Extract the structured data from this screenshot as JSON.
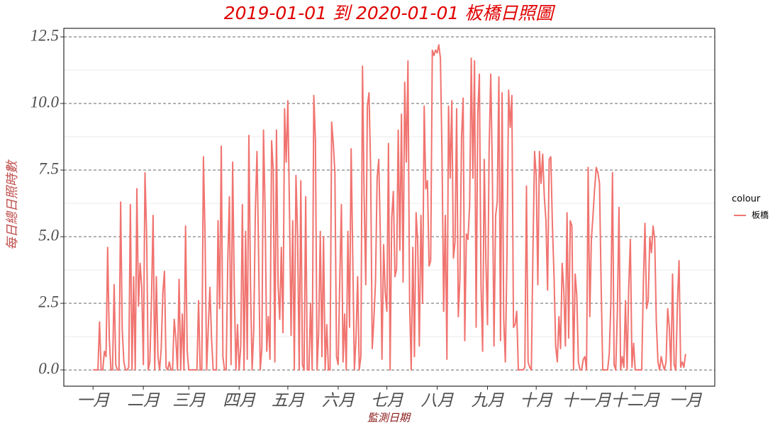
{
  "chart_data": {
    "type": "line",
    "title": "2019-01-01 到 2020-01-01 板橋日照圖",
    "x_label": "監測日期",
    "y_label": "每日總日照時數",
    "legend_title": "colour",
    "legend_position": "right",
    "grid": true,
    "xlim": [
      -18,
      383
    ],
    "xticks": [
      {
        "value": 0,
        "label": "一月"
      },
      {
        "value": 31,
        "label": "二月"
      },
      {
        "value": 59,
        "label": "三月"
      },
      {
        "value": 90,
        "label": "四月"
      },
      {
        "value": 120,
        "label": "五月"
      },
      {
        "value": 151,
        "label": "六月"
      },
      {
        "value": 181,
        "label": "七月"
      },
      {
        "value": 212,
        "label": "八月"
      },
      {
        "value": 243,
        "label": "九月"
      },
      {
        "value": 273,
        "label": "十月"
      },
      {
        "value": 304,
        "label": "十一月"
      },
      {
        "value": 334,
        "label": "十二月"
      },
      {
        "value": 365,
        "label": "一月"
      }
    ],
    "ylim": [
      -0.61,
      12.82
    ],
    "yticks": [
      {
        "value": 0,
        "label": "0.0"
      },
      2.5,
      {
        "value": 5,
        "label": "5.0"
      },
      7.5,
      {
        "value": 10,
        "label": "10.0"
      },
      12.5
    ],
    "series": [
      {
        "name": "板橋",
        "color": "#f07470",
        "values": [
          0,
          0,
          0,
          0,
          1.8,
          0,
          0,
          0.7,
          0.5,
          4.6,
          1.2,
          0,
          0,
          3.2,
          0.2,
          0,
          0,
          6.3,
          1.5,
          0.3,
          0,
          0,
          0.1,
          6.2,
          0,
          3.5,
          0,
          6.8,
          2.4,
          4.0,
          3.1,
          0.2,
          7.4,
          5.1,
          0,
          0.3,
          2.6,
          5.8,
          0,
          3.5,
          0.5,
          0,
          0.8,
          2.9,
          3.7,
          0.1,
          0,
          0.3,
          0,
          0,
          1.9,
          1.2,
          0,
          3.4,
          0,
          2.1,
          0,
          5.4,
          0.7,
          0,
          0,
          0,
          0,
          0,
          0,
          2.6,
          0,
          0,
          8.0,
          5.0,
          0,
          1.6,
          3.1,
          1.2,
          0,
          0,
          0,
          5.6,
          2.3,
          8.4,
          0.5,
          0,
          0,
          4.1,
          6.5,
          0.2,
          7.8,
          3.1,
          0,
          1.7,
          0,
          0.9,
          6.2,
          0,
          5.2,
          0.4,
          8.8,
          3.2,
          0,
          1.5,
          6.0,
          8.2,
          4.3,
          0,
          0.8,
          9.0,
          6.0,
          0.7,
          2.0,
          0.4,
          8.6,
          7.5,
          0.3,
          9.0,
          3.2,
          1.9,
          4.6,
          1.4,
          9.8,
          7.8,
          10.1,
          6.0,
          1.3,
          5.6,
          0,
          7.3,
          5.1,
          0,
          7.1,
          0.2,
          0,
          6.5,
          0,
          0,
          2.5,
          0,
          10.3,
          8.6,
          0,
          1.4,
          5.2,
          0.5,
          5.0,
          0,
          1.7,
          0,
          0,
          9.3,
          8.5,
          7.4,
          0.5,
          0.2,
          3.4,
          6.2,
          0.3,
          2.1,
          0,
          5.2,
          1.6,
          8.3,
          4.2,
          0,
          1.2,
          3.5,
          0,
          0.5,
          11.4,
          6.5,
          3.2,
          9.9,
          10.4,
          7.6,
          0.8,
          1.9,
          3.3,
          7.2,
          7.9,
          5.0,
          0.4,
          4.7,
          2.9,
          2.2,
          8.5,
          0,
          5.7,
          6.7,
          3.5,
          3.8,
          9.0,
          4.5,
          9.6,
          3.3,
          10.8,
          7.8,
          11.6,
          2.6,
          0,
          4.6,
          0.5,
          5.9,
          4.8,
          0.9,
          5.8,
          2.5,
          9.9,
          6.8,
          7.1,
          3.9,
          4.1,
          12.0,
          11.8,
          12.0,
          11.9,
          12.2,
          11.7,
          8.0,
          2.2,
          5.8,
          0.4,
          9.9,
          7.2,
          10.1,
          4.2,
          4.8,
          9.8,
          2.0,
          3.4,
          8.7,
          10.2,
          1.1,
          5.1,
          4.9,
          6.2,
          11.7,
          7.2,
          11.6,
          1.6,
          9.6,
          11.1,
          3.2,
          0.7,
          7.9,
          4.1,
          1.7,
          8.3,
          11.1,
          7.4,
          0.9,
          5.8,
          6.3,
          11.0,
          1.1,
          10.4,
          1.9,
          0.3,
          4.3,
          10.5,
          9.1,
          10.3,
          1.6,
          1.7,
          2.2,
          0,
          0,
          0,
          0,
          0.1,
          6.9,
          0.3,
          0.1,
          0,
          4.5,
          8.2,
          7.3,
          3.2,
          8.2,
          7.0,
          8.1,
          6.5,
          5.6,
          3.0,
          7.9,
          8.0,
          5.4,
          3.5,
          0.9,
          0.3,
          2.0,
          0.8,
          4.0,
          3.0,
          0.9,
          5.9,
          1.2,
          5.6,
          5.4,
          0,
          3.6,
          2.8,
          0.3,
          0,
          0,
          0.4,
          0.5,
          0,
          7.6,
          2.0,
          4.9,
          5.8,
          6.8,
          7.6,
          7.4,
          7.0,
          3.2,
          0,
          0,
          0,
          0,
          0.6,
          2.5,
          7.4,
          0.2,
          0,
          2.2,
          6.1,
          0,
          0.5,
          0.1,
          2.6,
          0,
          3.1,
          4.9,
          0.1,
          1.0,
          0,
          0,
          0,
          0,
          0,
          3.2,
          5.5,
          2.3,
          2.6,
          5.0,
          4.4,
          5.4,
          4.9,
          1.8,
          0.3,
          0,
          0.5,
          0.2,
          0,
          0.3,
          2.3,
          1.6,
          0,
          3.6,
          0.2,
          0,
          2.5,
          4.1,
          0.1,
          0.3,
          0.1,
          0.6
        ]
      }
    ]
  }
}
